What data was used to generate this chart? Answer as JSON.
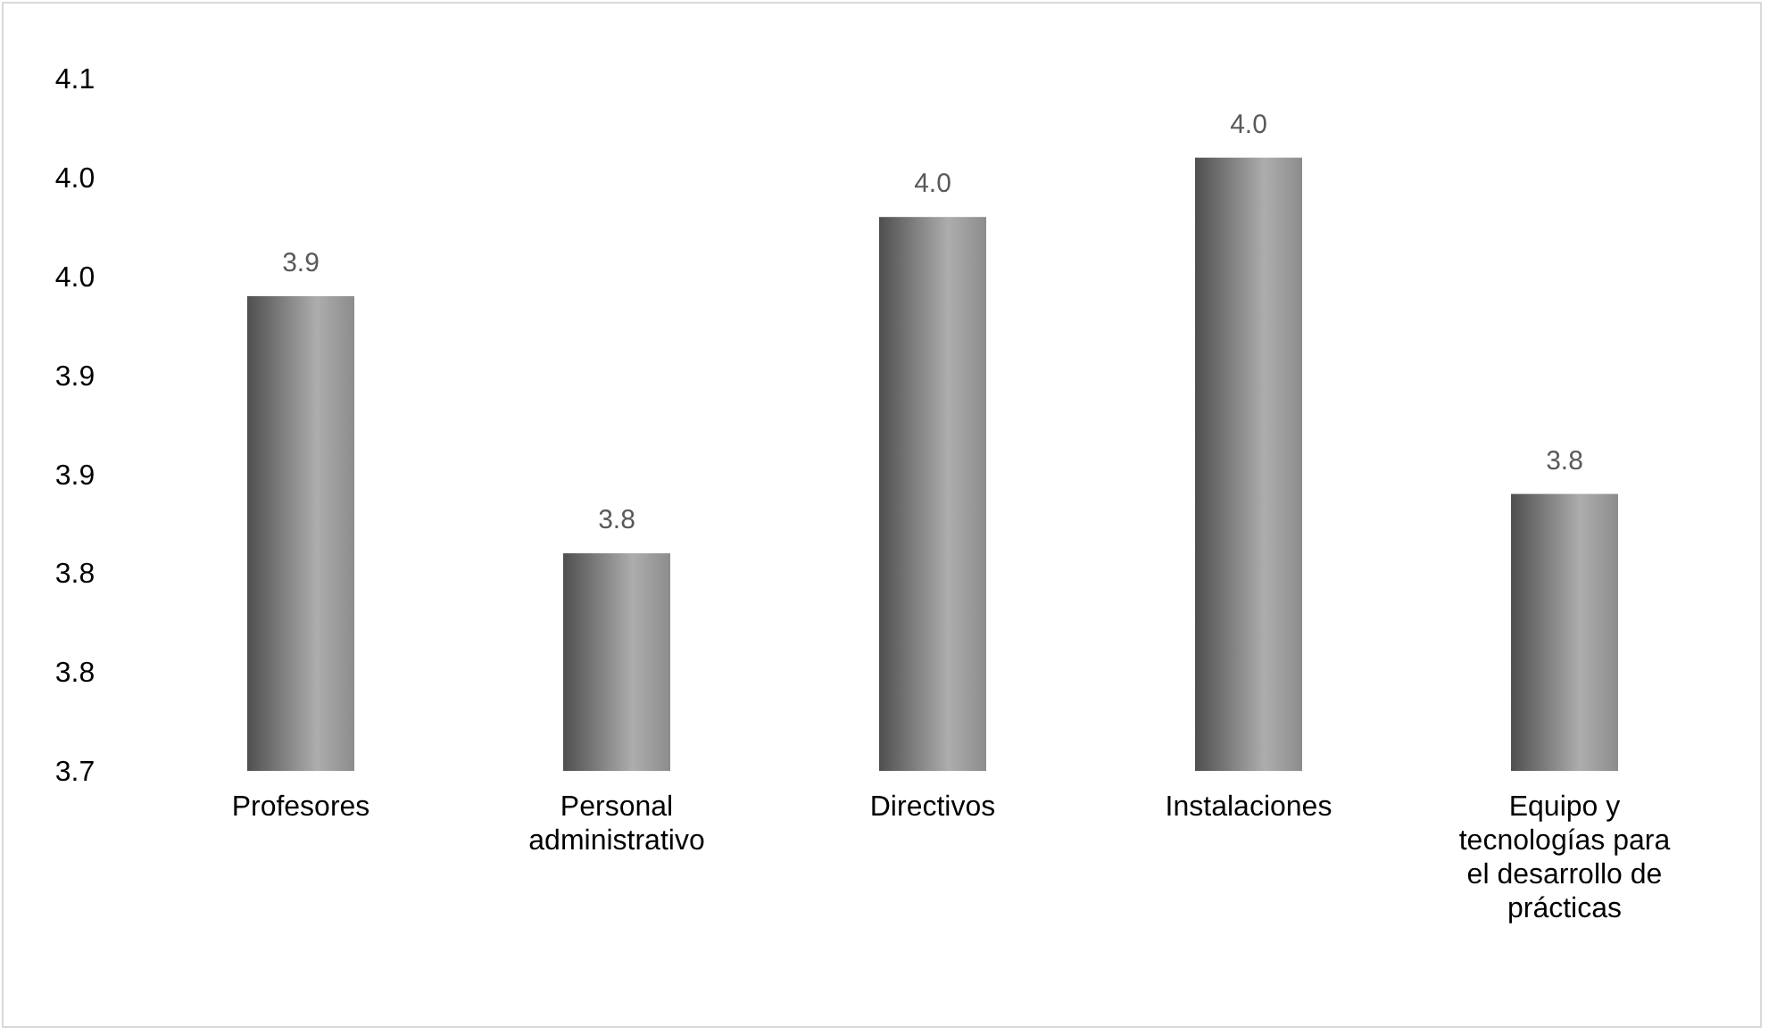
{
  "chart_data": {
    "type": "bar",
    "categories": [
      "Profesores",
      "Personal administrativo",
      "Directivos",
      "Instalaciones",
      "Equipo y tecnologías para el desarrollo de prácticas"
    ],
    "values": [
      3.94,
      3.81,
      3.98,
      4.01,
      3.84
    ],
    "value_labels": [
      "3.9",
      "3.8",
      "4.0",
      "4.0",
      "3.8"
    ],
    "color": "#8c8c8c",
    "ylim": [
      3.7,
      4.05
    ],
    "yticks": [
      {
        "value": 3.7,
        "label": "3.7"
      },
      {
        "value": 3.75,
        "label": "3.8"
      },
      {
        "value": 3.8,
        "label": "3.8"
      },
      {
        "value": 3.85,
        "label": "3.9"
      },
      {
        "value": 3.9,
        "label": "3.9"
      },
      {
        "value": 3.95,
        "label": "4.0"
      },
      {
        "value": 4.0,
        "label": "4.0"
      },
      {
        "value": 4.05,
        "label": "4.1"
      }
    ],
    "grid": false
  }
}
